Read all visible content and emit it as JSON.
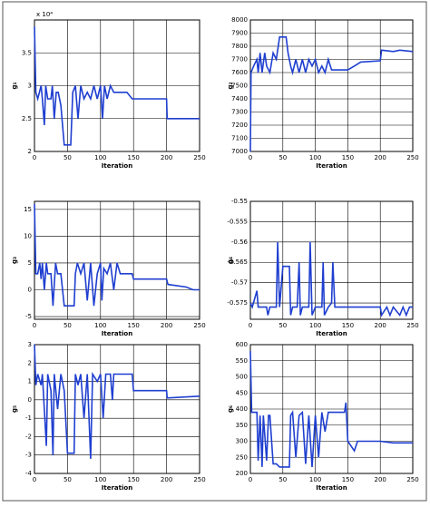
{
  "chart_data": [
    {
      "type": "line",
      "ylabel": "g₁",
      "x_label": "Iteration",
      "annotation": "x 10⁴",
      "xlim": [
        0,
        250
      ],
      "xticks": [
        0,
        50,
        100,
        150,
        200,
        250
      ],
      "ylim": [
        2,
        4
      ],
      "yticks": [
        2,
        2.5,
        3,
        3.5
      ],
      "grid": true,
      "color": "#1f3fd0",
      "x": [
        0,
        2,
        5,
        10,
        12,
        15,
        17,
        20,
        25,
        27,
        30,
        33,
        36,
        40,
        45,
        55,
        58,
        62,
        66,
        70,
        75,
        80,
        85,
        90,
        95,
        100,
        103,
        106,
        110,
        115,
        120,
        130,
        140,
        148,
        200,
        201,
        250
      ],
      "values": [
        3.9,
        2.9,
        2.8,
        3.0,
        2.8,
        2.4,
        3.0,
        2.8,
        2.8,
        3.0,
        2.5,
        2.9,
        2.9,
        2.7,
        2.1,
        2.1,
        2.9,
        3.0,
        2.5,
        3.0,
        2.8,
        2.9,
        2.8,
        3.0,
        2.8,
        3.0,
        2.5,
        3.0,
        2.8,
        3.0,
        2.9,
        2.9,
        2.9,
        2.8,
        2.8,
        2.5,
        2.5
      ]
    },
    {
      "type": "line",
      "ylabel": "g₂",
      "x_label": "Iteration",
      "xlim": [
        0,
        250
      ],
      "xticks": [
        0,
        50,
        100,
        150,
        200,
        250
      ],
      "ylim": [
        7000,
        8000
      ],
      "yticks": [
        7000,
        7100,
        7200,
        7300,
        7400,
        7500,
        7600,
        7700,
        7800,
        7900,
        8000
      ],
      "grid": true,
      "color": "#1f3fd0",
      "x": [
        0,
        1,
        5,
        10,
        12,
        15,
        18,
        22,
        25,
        30,
        35,
        40,
        45,
        55,
        58,
        62,
        65,
        70,
        75,
        80,
        85,
        90,
        95,
        100,
        105,
        110,
        115,
        120,
        125,
        150,
        160,
        170,
        200,
        202,
        220,
        230,
        250
      ],
      "values": [
        7000,
        7600,
        7650,
        7700,
        7600,
        7750,
        7600,
        7750,
        7650,
        7600,
        7750,
        7700,
        7870,
        7870,
        7750,
        7650,
        7600,
        7700,
        7600,
        7700,
        7600,
        7700,
        7650,
        7700,
        7600,
        7650,
        7600,
        7700,
        7620,
        7620,
        7650,
        7680,
        7690,
        7770,
        7760,
        7770,
        7760
      ]
    },
    {
      "type": "line",
      "ylabel": "g₃",
      "x_label": "Iteration",
      "xlim": [
        0,
        250
      ],
      "xticks": [
        0,
        50,
        100,
        150,
        200,
        250
      ],
      "ylim": [
        -5.5,
        16.5
      ],
      "yticks": [
        -5,
        0,
        5,
        10,
        15
      ],
      "grid": true,
      "color": "#1f3fd0",
      "x": [
        0,
        2,
        5,
        8,
        10,
        12,
        15,
        18,
        20,
        25,
        28,
        32,
        35,
        40,
        45,
        60,
        62,
        65,
        70,
        75,
        80,
        85,
        90,
        95,
        100,
        102,
        105,
        110,
        115,
        120,
        125,
        130,
        148,
        150,
        200,
        202,
        230,
        240,
        250
      ],
      "values": [
        16,
        3,
        3,
        5,
        2,
        5,
        0,
        5,
        3,
        3,
        -3,
        5,
        3,
        3,
        -3,
        -3,
        3,
        5,
        3,
        5,
        -2,
        5,
        -3,
        3,
        5,
        -2,
        4,
        3,
        5,
        0,
        5,
        3,
        3,
        2,
        2,
        1,
        0.5,
        0,
        0
      ]
    },
    {
      "type": "line",
      "ylabel": "g₄",
      "x_label": "Iteration",
      "xlim": [
        0,
        250
      ],
      "xticks": [
        0,
        50,
        100,
        150,
        200,
        250
      ],
      "ylim": [
        -0.579,
        -0.55
      ],
      "yticks": [
        -0.575,
        -0.57,
        -0.565,
        -0.56,
        -0.555,
        -0.55
      ],
      "grid": true,
      "color": "#1f3fd0",
      "x": [
        0,
        3,
        10,
        12,
        20,
        25,
        27,
        30,
        40,
        42,
        45,
        50,
        60,
        62,
        65,
        72,
        75,
        77,
        80,
        90,
        92,
        95,
        100,
        110,
        112,
        114,
        120,
        125,
        127,
        130,
        150,
        170,
        200,
        202,
        210,
        215,
        220,
        230,
        235,
        240,
        245,
        250
      ],
      "values": [
        -0.575,
        -0.576,
        -0.572,
        -0.576,
        -0.576,
        -0.576,
        -0.578,
        -0.576,
        -0.576,
        -0.56,
        -0.576,
        -0.566,
        -0.566,
        -0.578,
        -0.576,
        -0.576,
        -0.565,
        -0.578,
        -0.576,
        -0.576,
        -0.56,
        -0.578,
        -0.576,
        -0.576,
        -0.565,
        -0.578,
        -0.576,
        -0.575,
        -0.565,
        -0.576,
        -0.576,
        -0.576,
        -0.576,
        -0.578,
        -0.576,
        -0.578,
        -0.576,
        -0.578,
        -0.576,
        -0.578,
        -0.576,
        -0.576
      ]
    },
    {
      "type": "line",
      "ylabel": "g₅",
      "x_label": "Iteration",
      "xlim": [
        0,
        250
      ],
      "xticks": [
        0,
        50,
        100,
        150,
        200,
        250
      ],
      "ylim": [
        -4,
        3
      ],
      "yticks": [
        -4,
        -3,
        -2,
        -1,
        0,
        1,
        2,
        3
      ],
      "grid": true,
      "color": "#1f3fd0",
      "x": [
        0,
        2,
        5,
        10,
        12,
        18,
        20,
        25,
        28,
        30,
        35,
        40,
        45,
        50,
        60,
        62,
        66,
        70,
        75,
        80,
        85,
        88,
        95,
        100,
        104,
        108,
        115,
        118,
        120,
        130,
        148,
        150,
        200,
        201,
        250
      ],
      "values": [
        3,
        0.8,
        1.4,
        0.8,
        1.4,
        -2.5,
        1.4,
        0.5,
        -3,
        1.4,
        -0.5,
        1.4,
        0.5,
        -2.9,
        -2.9,
        1.4,
        0.8,
        1.4,
        -1,
        1.4,
        -3.2,
        1.4,
        1.0,
        1.4,
        -1,
        1.4,
        1.4,
        0,
        1.4,
        1.4,
        1.4,
        0.5,
        0.5,
        0.1,
        0.2
      ]
    },
    {
      "type": "line",
      "ylabel": "g₆",
      "x_label": "Iteration",
      "xlim": [
        0,
        250
      ],
      "xticks": [
        0,
        50,
        100,
        150,
        200,
        250
      ],
      "ylim": [
        200,
        600
      ],
      "yticks": [
        200,
        250,
        300,
        350,
        400,
        450,
        500,
        550,
        600
      ],
      "grid": true,
      "color": "#1f3fd0",
      "x": [
        0,
        2,
        10,
        12,
        15,
        18,
        20,
        25,
        28,
        30,
        35,
        40,
        45,
        60,
        62,
        65,
        70,
        75,
        80,
        85,
        90,
        95,
        100,
        105,
        110,
        115,
        120,
        130,
        145,
        147,
        150,
        160,
        165,
        200,
        220,
        250
      ],
      "values": [
        580,
        390,
        390,
        240,
        380,
        220,
        380,
        240,
        380,
        380,
        230,
        230,
        220,
        220,
        380,
        390,
        250,
        380,
        390,
        230,
        380,
        220,
        380,
        250,
        390,
        330,
        390,
        390,
        390,
        420,
        300,
        270,
        300,
        300,
        295,
        295
      ]
    }
  ]
}
